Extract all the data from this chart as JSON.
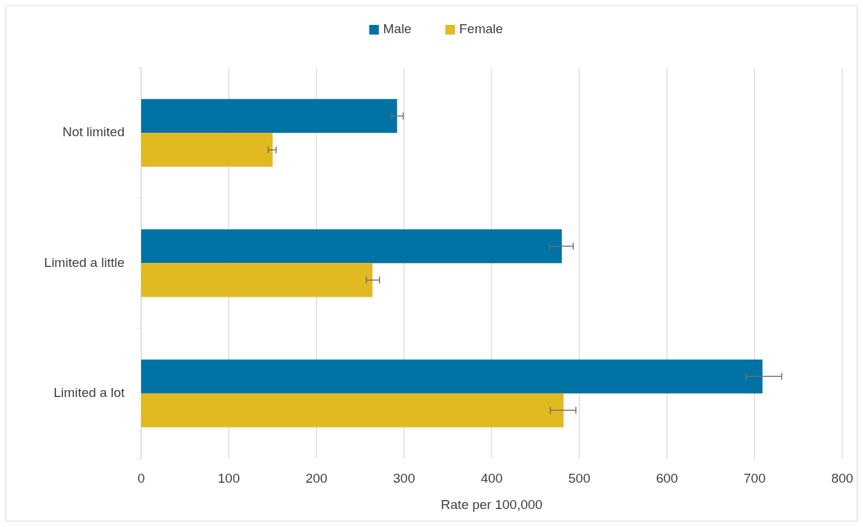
{
  "chart_data": {
    "type": "bar",
    "orientation": "horizontal",
    "xlabel": "Rate per 100,000",
    "categories": [
      "Not limited",
      "Limited a little",
      "Limited a lot"
    ],
    "series": [
      {
        "name": "Male",
        "color": "#0072a3",
        "values": [
          292,
          480,
          709
        ],
        "errors": [
          [
            286,
            299
          ],
          [
            466,
            493
          ],
          [
            690,
            731
          ]
        ]
      },
      {
        "name": "Female",
        "color": "#e1ba22",
        "values": [
          150,
          264,
          482
        ],
        "errors": [
          [
            145,
            154
          ],
          [
            257,
            272
          ],
          [
            467,
            496
          ]
        ]
      }
    ],
    "xlim": [
      0,
      800
    ],
    "xticks": [
      0,
      100,
      200,
      300,
      400,
      500,
      600,
      700,
      800
    ],
    "grid": "x",
    "legend": "top"
  }
}
